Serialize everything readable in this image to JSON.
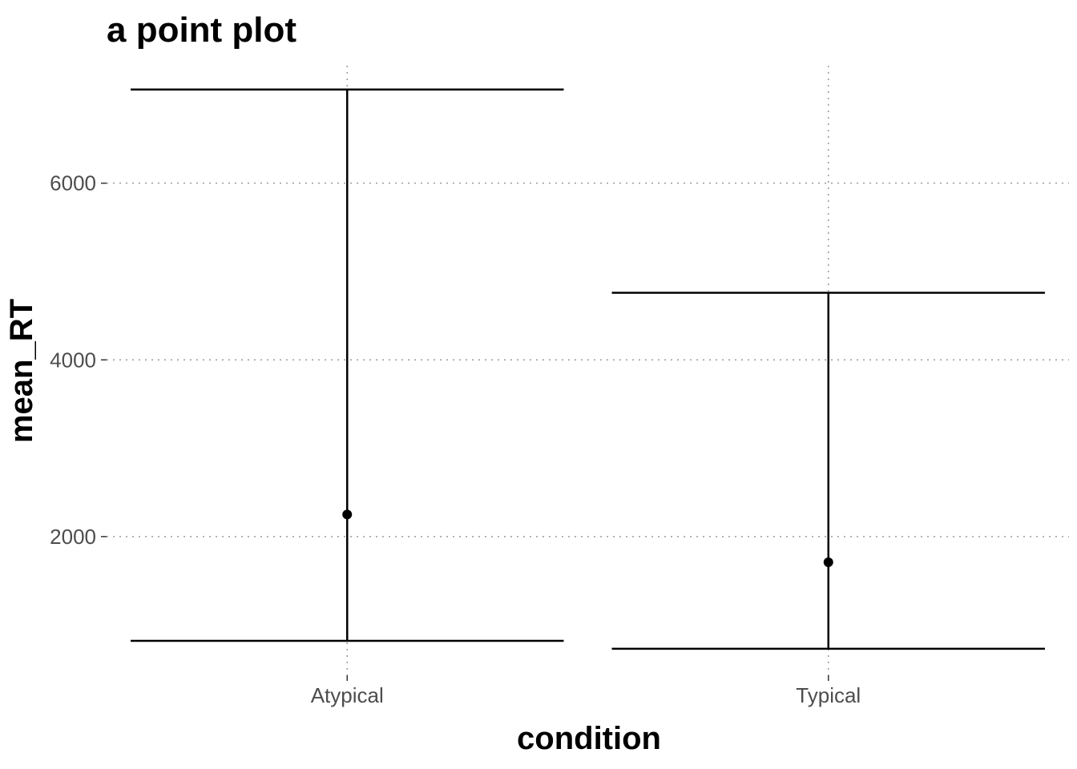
{
  "chart_data": {
    "type": "scatter",
    "title": "a point plot",
    "xlabel": "condition",
    "ylabel": "mean_RT",
    "categories": [
      "Atypical",
      "Typical"
    ],
    "points": [
      {
        "category": "Atypical",
        "y": 2250,
        "ymin": 820,
        "ymax": 7060
      },
      {
        "category": "Typical",
        "y": 1710,
        "ymin": 730,
        "ymax": 4760
      }
    ],
    "y_ticks": [
      2000,
      4000,
      6000
    ],
    "ylim": [
      430,
      7330
    ],
    "grid": true,
    "legend": "none"
  }
}
